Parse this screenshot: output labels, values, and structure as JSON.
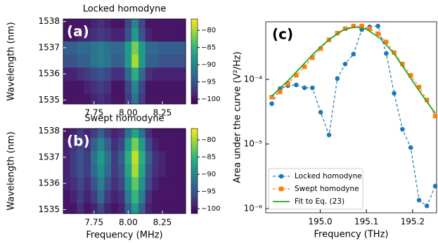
{
  "chart_data": [
    {
      "type": "heatmap",
      "title": "Locked homodyne",
      "panel_label": "(a)",
      "ylabel": "Wavelength (nm)",
      "colormap": "viridis",
      "x": [
        7.55,
        7.6,
        7.65,
        7.7,
        7.75,
        7.8,
        7.85,
        7.9,
        7.95,
        8.0,
        8.05,
        8.1,
        8.15,
        8.2,
        8.25,
        8.3,
        8.35,
        8.4
      ],
      "y": [
        1535,
        1535.5,
        1536,
        1536.5,
        1537,
        1537.5,
        1538
      ],
      "z": [
        [
          -100,
          -100,
          -100,
          -100,
          -99,
          -98,
          -99,
          -100,
          -100,
          -97,
          -92,
          -97,
          -100,
          -100,
          -100,
          -100,
          -100,
          -100
        ],
        [
          -100,
          -100,
          -100,
          -99,
          -98,
          -97,
          -98,
          -100,
          -100,
          -96,
          -90,
          -96,
          -100,
          -100,
          -100,
          -100,
          -100,
          -100
        ],
        [
          -99,
          -99,
          -98,
          -97,
          -96,
          -95,
          -96,
          -98,
          -98,
          -93,
          -86,
          -93,
          -98,
          -99,
          -99,
          -99,
          -99,
          -99
        ],
        [
          -95,
          -95,
          -94,
          -94,
          -92,
          -91,
          -92,
          -94,
          -94,
          -88,
          -80,
          -88,
          -94,
          -94,
          -95,
          -95,
          -95,
          -95
        ],
        [
          -94,
          -94,
          -93,
          -93,
          -92,
          -91,
          -92,
          -93,
          -93,
          -88,
          -82,
          -88,
          -93,
          -93,
          -94,
          -94,
          -94,
          -94
        ],
        [
          -100,
          -100,
          -99,
          -99,
          -98,
          -97,
          -98,
          -99,
          -99,
          -95,
          -88,
          -95,
          -99,
          -100,
          -100,
          -100,
          -100,
          -100
        ],
        [
          -100,
          -100,
          -100,
          -100,
          -99,
          -98,
          -99,
          -100,
          -100,
          -96,
          -90,
          -96,
          -100,
          -100,
          -100,
          -100,
          -100,
          -100
        ]
      ],
      "xlim": [
        7.525,
        8.42
      ],
      "ylim": [
        1534.85,
        1538.1
      ],
      "xticks": [
        7.75,
        {
          "value": 8,
          "label": "8.00"
        },
        8.25
      ],
      "yticks": [
        1535,
        1536,
        1537,
        1538
      ],
      "zlim": [
        -101.4,
        -76.7
      ],
      "zticks": [
        {
          "value": -80,
          "label": "−80"
        },
        {
          "value": -85,
          "label": "−85"
        },
        {
          "value": -90,
          "label": "−90"
        },
        {
          "value": -95,
          "label": "−95"
        },
        {
          "value": -100,
          "label": "−100"
        }
      ]
    },
    {
      "type": "heatmap",
      "title": "Swept homodyne",
      "panel_label": "(b)",
      "ylabel": "Wavelength (nm)",
      "xlabel": "Frequency (MHz)",
      "colormap": "viridis",
      "x": [
        7.55,
        7.6,
        7.65,
        7.7,
        7.75,
        7.8,
        7.85,
        7.9,
        7.95,
        8.0,
        8.05,
        8.1,
        8.15,
        8.2,
        8.25,
        8.3,
        8.35,
        8.4
      ],
      "y": [
        1535,
        1535.5,
        1536,
        1536.5,
        1537,
        1537.5,
        1538
      ],
      "z": [
        [
          -100,
          -100,
          -98,
          -100,
          -99,
          -96,
          -99,
          -100,
          -99,
          -94,
          -88,
          -94,
          -99,
          -100,
          -100,
          -100,
          -100,
          -100
        ],
        [
          -100,
          -99,
          -97,
          -99,
          -97,
          -93,
          -97,
          -99,
          -98,
          -91,
          -85,
          -91,
          -98,
          -100,
          -100,
          -100,
          -100,
          -100
        ],
        [
          -99,
          -98,
          -96,
          -98,
          -95,
          -91,
          -95,
          -98,
          -96,
          -89,
          -83,
          -89,
          -96,
          -99,
          -100,
          -100,
          -100,
          -100
        ],
        [
          -99,
          -97,
          -95,
          -97,
          -93,
          -89,
          -93,
          -97,
          -95,
          -87,
          -80,
          -87,
          -95,
          -98,
          -99,
          -100,
          -100,
          -100
        ],
        [
          -99,
          -97,
          -95,
          -97,
          -92,
          -88,
          -92,
          -97,
          -94,
          -86,
          -79,
          -86,
          -94,
          -98,
          -99,
          -100,
          -100,
          -100
        ],
        [
          -99,
          -98,
          -96,
          -98,
          -94,
          -90,
          -94,
          -98,
          -96,
          -88,
          -82,
          -88,
          -96,
          -99,
          -100,
          -100,
          -100,
          -100
        ],
        [
          -100,
          -99,
          -97,
          -99,
          -97,
          -94,
          -97,
          -99,
          -98,
          -92,
          -87,
          -92,
          -98,
          -100,
          -100,
          -100,
          -100,
          -100
        ]
      ],
      "xlim": [
        7.525,
        8.42
      ],
      "ylim": [
        1534.85,
        1538.1
      ],
      "xticks": [
        7.75,
        {
          "value": 8,
          "label": "8.00"
        },
        8.25
      ],
      "yticks": [
        1535,
        1536,
        1537,
        1538
      ],
      "zlim": [
        -101.4,
        -76.7
      ],
      "zticks": [
        {
          "value": -80,
          "label": "−80"
        },
        {
          "value": -85,
          "label": "−85"
        },
        {
          "value": -90,
          "label": "−90"
        },
        {
          "value": -95,
          "label": "−95"
        },
        {
          "value": -100,
          "label": "−100"
        }
      ]
    },
    {
      "type": "line",
      "panel_label": "(c)",
      "xlabel": "Frequency (THz)",
      "ylabel": "Area under the curve (V²/Hz)",
      "log_y": true,
      "legend": "lower left",
      "xlim": [
        194.882,
        195.252
      ],
      "ylim": [
        8.6e-07,
        0.00078
      ],
      "xticks": [
        {
          "value": 195,
          "label": "195.0"
        },
        195.1,
        195.2
      ],
      "yticks": [
        {
          "value": 1e-06,
          "label": "10⁻⁶"
        },
        {
          "value": 1e-05,
          "label": "10⁻⁵"
        },
        {
          "value": 0.0001,
          "label": "10⁻⁴"
        }
      ],
      "series": [
        {
          "name": "Locked homodyne",
          "color": "#1f77b4",
          "marker": "circle",
          "dashed": true,
          "x": [
            194.895,
            194.913,
            194.93,
            194.948,
            194.966,
            194.983,
            195.001,
            195.019,
            195.037,
            195.054,
            195.072,
            195.09,
            195.107,
            195.125,
            195.143,
            195.16,
            195.178,
            195.196,
            195.214,
            195.231,
            195.249
          ],
          "values": [
            4.2e-05,
            7.2e-05,
            8e-05,
            8.2e-05,
            7.4e-05,
            7.4e-05,
            3.1e-05,
            1.38e-05,
            0.000103,
            0.000173,
            0.000246,
            0.00059,
            0.00065,
            0.00067,
            0.000252,
            6.1e-05,
            1.69e-05,
            8.8e-06,
            1.35e-06,
            1.1e-06,
            2.23e-06
          ]
        },
        {
          "name": "Swept homodyne",
          "color": "#ff7f0e",
          "marker": "square",
          "dashed": true,
          "x": [
            194.895,
            194.913,
            194.93,
            194.948,
            194.966,
            194.983,
            195.001,
            195.019,
            195.037,
            195.054,
            195.072,
            195.09,
            195.107,
            195.125,
            195.143,
            195.16,
            195.178,
            195.196,
            195.214,
            195.231,
            195.249
          ],
          "values": [
            5.3e-05,
            6.4e-05,
            8.6e-05,
            0.000116,
            0.000157,
            0.000217,
            0.0003,
            0.00041,
            0.00052,
            0.00061,
            0.00067,
            0.00067,
            0.00061,
            0.00051,
            0.00038,
            0.00026,
            0.000173,
            0.000116,
            7.6e-05,
            4.8e-05,
            2.7e-05
          ]
        },
        {
          "name": "Fit to Eq. (23)",
          "color": "#2ca02c",
          "marker": "none",
          "dashed": false,
          "x": [
            194.895,
            194.93,
            194.96,
            194.99,
            195.02,
            195.05,
            195.075,
            195.1,
            195.13,
            195.16,
            195.19,
            195.22,
            195.249
          ],
          "values": [
            5.5e-05,
            9.5e-05,
            0.00016,
            0.00027,
            0.00042,
            0.00058,
            0.00065,
            0.0006,
            0.00043,
            0.00025,
            0.00012,
            5.8e-05,
            3e-05
          ]
        }
      ]
    }
  ]
}
